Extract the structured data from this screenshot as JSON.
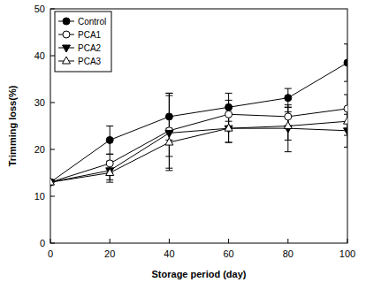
{
  "chart_data": {
    "type": "line",
    "x_label": "Storage period (day)",
    "y_label": "Trimming loss(%)",
    "x": [
      0,
      20,
      40,
      60,
      80,
      100
    ],
    "xlim": [
      0,
      100
    ],
    "xticks": [
      0,
      20,
      40,
      60,
      80,
      100
    ],
    "ylim": [
      0,
      50
    ],
    "yticks": [
      0,
      10,
      20,
      30,
      40,
      50
    ],
    "legend": "upper-left",
    "series": [
      {
        "name": "Control",
        "color": "#000000",
        "marker": "circle",
        "line_style": "solid",
        "values": [
          13,
          22,
          27,
          29,
          31,
          38.5
        ],
        "errors": [
          0.5,
          3,
          5,
          3,
          2,
          4
        ]
      },
      {
        "name": "PCA1",
        "color": "#000000",
        "marker": "circle-open",
        "line_style": "solid",
        "values": [
          13,
          17,
          24,
          27.5,
          27,
          28.7
        ],
        "errors": [
          0.5,
          2,
          8,
          3,
          2,
          3
        ]
      },
      {
        "name": "PCA2",
        "color": "#000000",
        "marker": "triangle-down",
        "line_style": "solid",
        "values": [
          13,
          15.5,
          23.5,
          24.5,
          24.5,
          24
        ],
        "errors": [
          0.5,
          2,
          8,
          3,
          5,
          3.5
        ]
      },
      {
        "name": "PCA3",
        "color": "#000000",
        "marker": "triangle-up-open",
        "line_style": "solid",
        "values": [
          13,
          15,
          21.5,
          24.5,
          25,
          26
        ],
        "errors": [
          0.5,
          2,
          3,
          3,
          3,
          3
        ]
      }
    ]
  }
}
